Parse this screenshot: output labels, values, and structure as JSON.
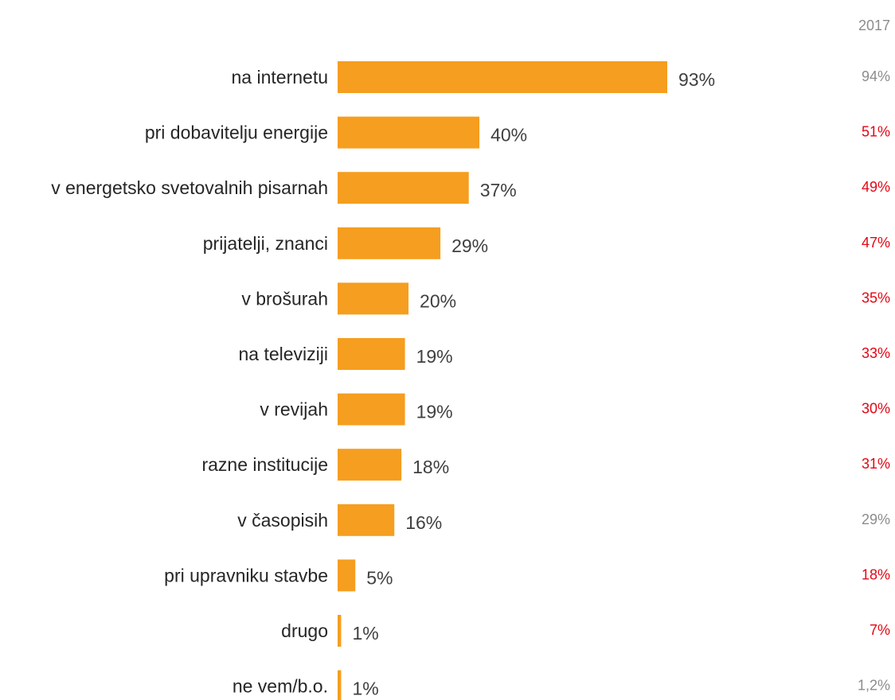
{
  "chart_data": {
    "type": "bar",
    "orientation": "horizontal",
    "categories": [
      "na internetu",
      "pri dobavitelju energije",
      "v energetsko svetovalnih pisarnah",
      "prijatelji, znanci",
      "v brošurah",
      "na televiziji",
      "v revijah",
      "razne institucije",
      "v časopisih",
      "pri upravniku stavbe",
      "drugo",
      "ne vem/b.o."
    ],
    "values": [
      93,
      40,
      37,
      29,
      20,
      19,
      19,
      18,
      16,
      5,
      1,
      1
    ],
    "value_labels": [
      "93%",
      "40%",
      "37%",
      "29%",
      "20%",
      "19%",
      "19%",
      "18%",
      "16%",
      "5%",
      "1%",
      "1%"
    ],
    "xlim": [
      0,
      100
    ],
    "bar_color": "#F59E1F",
    "comparison": {
      "header": "2017",
      "labels": [
        "94%",
        "51%",
        "49%",
        "47%",
        "35%",
        "33%",
        "30%",
        "31%",
        "29%",
        "18%",
        "7%",
        "1,2%"
      ],
      "highlight": [
        false,
        true,
        true,
        true,
        true,
        true,
        true,
        true,
        false,
        true,
        true,
        false
      ],
      "highlight_color": "#E30613",
      "normal_color": "#8C8C8C"
    },
    "grid": false,
    "legend": "none"
  }
}
